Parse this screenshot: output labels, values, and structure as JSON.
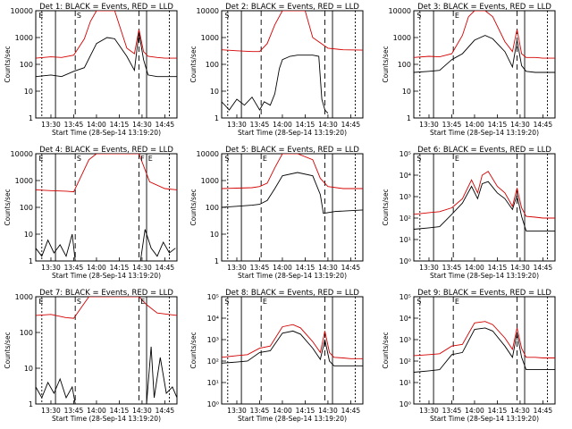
{
  "colors": {
    "events": "#000000",
    "lld": "#d40000",
    "frame": "#000000"
  },
  "common": {
    "ylabel": "Counts/sec",
    "xlabel": "Start Time (28-Sep-14 13:19:20)",
    "x_ticks": [
      "13:30",
      "13:45",
      "14:00",
      "14:15",
      "14:30",
      "14:45"
    ]
  },
  "chart_data": [
    {
      "type": "line",
      "title": "Det 1: BLACK = Events, RED = LLD",
      "y_log": true,
      "ylim": [
        1,
        10000
      ],
      "y_ticks": [
        "1",
        "10",
        "100",
        "1000",
        "10000"
      ],
      "markers": [
        "E",
        "S"
      ],
      "series": [
        {
          "name": "BLACK = Events",
          "x": [
            "13:20",
            "13:30",
            "13:37",
            "13:45",
            "13:52",
            "14:00",
            "14:07",
            "14:12",
            "14:20",
            "14:25",
            "14:28",
            "14:31",
            "14:34",
            "14:40",
            "14:45",
            "14:53"
          ],
          "y": [
            35,
            40,
            35,
            55,
            75,
            600,
            1000,
            900,
            200,
            60,
            1500,
            150,
            40,
            35,
            35,
            35
          ]
        },
        {
          "name": "RED = LLD",
          "x": [
            "13:20",
            "13:30",
            "13:37",
            "13:45",
            "13:52",
            "13:56",
            "14:00",
            "14:07",
            "14:12",
            "14:20",
            "14:25",
            "14:28",
            "14:31",
            "14:34",
            "14:40",
            "14:45",
            "14:53"
          ],
          "y": [
            170,
            190,
            180,
            220,
            900,
            4000,
            10000,
            10000,
            10000,
            400,
            250,
            2000,
            300,
            200,
            180,
            170,
            170
          ]
        }
      ]
    },
    {
      "type": "line",
      "title": "Det 2: BLACK = Events, RED = LLD",
      "y_log": true,
      "ylim": [
        1,
        10000
      ],
      "y_ticks": [
        "1",
        "10",
        "100",
        "1000",
        "10000"
      ],
      "markers": [
        "S"
      ],
      "series": [
        {
          "name": "BLACK = Events",
          "x": [
            "13:20",
            "13:25",
            "13:30",
            "13:35",
            "13:40",
            "13:45",
            "13:48",
            "13:52",
            "13:55",
            "13:58",
            "14:00",
            "14:05",
            "14:10",
            "14:15",
            "14:20",
            "14:24",
            "14:26",
            "14:28",
            "14:30"
          ],
          "y": [
            4,
            2,
            5,
            3,
            6,
            2,
            4,
            3,
            8,
            70,
            150,
            200,
            220,
            220,
            220,
            200,
            5,
            2,
            1.5
          ]
        },
        {
          "name": "RED = LLD",
          "x": [
            "13:20",
            "13:30",
            "13:40",
            "13:45",
            "13:50",
            "13:55",
            "14:00",
            "14:05",
            "14:15",
            "14:20",
            "14:30",
            "14:40",
            "14:53"
          ],
          "y": [
            350,
            320,
            300,
            300,
            600,
            3000,
            10000,
            10000,
            10000,
            1000,
            400,
            350,
            340
          ]
        }
      ]
    },
    {
      "type": "line",
      "title": "Det 3: BLACK = Events, RED = LLD",
      "y_log": true,
      "ylim": [
        1,
        10000
      ],
      "y_ticks": [
        "1",
        "10",
        "100",
        "1000",
        "10000"
      ],
      "markers": [
        "S",
        "E"
      ],
      "series": [
        {
          "name": "BLACK = Events",
          "x": [
            "13:20",
            "13:30",
            "13:37",
            "13:45",
            "13:52",
            "14:00",
            "14:07",
            "14:12",
            "14:20",
            "14:25",
            "14:28",
            "14:31",
            "14:34",
            "14:40",
            "14:45",
            "14:53"
          ],
          "y": [
            50,
            55,
            60,
            150,
            250,
            800,
            1200,
            900,
            300,
            80,
            800,
            90,
            55,
            50,
            50,
            50
          ]
        },
        {
          "name": "RED = LLD",
          "x": [
            "13:20",
            "13:30",
            "13:37",
            "13:45",
            "13:52",
            "13:56",
            "14:00",
            "14:07",
            "14:12",
            "14:20",
            "14:25",
            "14:28",
            "14:31",
            "14:34",
            "14:40",
            "14:45",
            "14:53"
          ],
          "y": [
            180,
            200,
            190,
            250,
            1200,
            6000,
            10000,
            10000,
            6000,
            700,
            300,
            2000,
            250,
            180,
            180,
            170,
            170
          ]
        }
      ]
    },
    {
      "type": "line",
      "title": "Det 4: BLACK = Events, RED = LLD",
      "y_log": true,
      "ylim": [
        1,
        10000
      ],
      "y_ticks": [
        "1",
        "10",
        "100",
        "1000",
        "10000"
      ],
      "markers": [
        "E",
        "S",
        "F",
        "E"
      ],
      "series": [
        {
          "name": "BLACK = Events",
          "x": [
            "13:20",
            "13:24",
            "13:28",
            "13:32",
            "13:36",
            "13:40",
            "13:44",
            "13:46",
            "14:29",
            "14:32",
            "14:36",
            "14:40",
            "14:44",
            "14:48",
            "14:52"
          ],
          "y": [
            3,
            1.5,
            6,
            2,
            4,
            1.5,
            10,
            1,
            1,
            15,
            3,
            1.5,
            5,
            2,
            3
          ]
        },
        {
          "name": "RED = LLD",
          "x": [
            "13:20",
            "13:30",
            "13:40",
            "13:45",
            "13:50",
            "13:55",
            "14:00",
            "14:10",
            "14:20",
            "14:28",
            "14:35",
            "14:45",
            "14:53"
          ],
          "y": [
            450,
            420,
            400,
            380,
            1500,
            6000,
            10000,
            10000,
            10000,
            10000,
            900,
            500,
            450
          ]
        }
      ]
    },
    {
      "type": "line",
      "title": "Det 5: BLACK = Events, RED = LLD",
      "y_log": true,
      "ylim": [
        1,
        10000
      ],
      "y_ticks": [
        "1",
        "10",
        "100",
        "1000",
        "10000"
      ],
      "markers": [
        "S",
        "E"
      ],
      "series": [
        {
          "name": "BLACK = Events",
          "x": [
            "13:20",
            "13:30",
            "13:40",
            "13:45",
            "13:50",
            "13:55",
            "14:00",
            "14:10",
            "14:20",
            "14:25",
            "14:27",
            "14:35",
            "14:45",
            "14:53"
          ],
          "y": [
            100,
            110,
            120,
            130,
            180,
            500,
            1500,
            2000,
            1500,
            300,
            60,
            70,
            75,
            80
          ]
        },
        {
          "name": "RED = LLD",
          "x": [
            "13:20",
            "13:30",
            "13:40",
            "13:45",
            "13:50",
            "13:55",
            "14:00",
            "14:10",
            "14:20",
            "14:25",
            "14:30",
            "14:40",
            "14:53"
          ],
          "y": [
            500,
            520,
            540,
            600,
            800,
            3000,
            10000,
            10000,
            6000,
            1200,
            600,
            500,
            500
          ]
        }
      ]
    },
    {
      "type": "line",
      "title": "Det 6: BLACK = Events, RED = LLD",
      "y_log": true,
      "ylim": [
        1,
        100000
      ],
      "y_ticks": [
        "10⁰",
        "10¹",
        "10²",
        "10³",
        "10⁴",
        "10⁵"
      ],
      "markers": [
        "S",
        "E"
      ],
      "series": [
        {
          "name": "BLACK = Events",
          "x": [
            "13:20",
            "13:30",
            "13:37",
            "13:45",
            "13:52",
            "13:58",
            "14:02",
            "14:05",
            "14:09",
            "14:15",
            "14:20",
            "14:25",
            "14:28",
            "14:31",
            "14:34",
            "14:40",
            "14:45",
            "14:53"
          ],
          "y": [
            30,
            35,
            40,
            150,
            500,
            3000,
            800,
            4000,
            5000,
            1500,
            800,
            250,
            1200,
            120,
            25,
            25,
            25,
            25
          ]
        },
        {
          "name": "RED = LLD",
          "x": [
            "13:20",
            "13:30",
            "13:37",
            "13:45",
            "13:52",
            "13:58",
            "14:02",
            "14:05",
            "14:09",
            "14:15",
            "14:20",
            "14:25",
            "14:28",
            "14:31",
            "14:34",
            "14:40",
            "14:45",
            "14:53"
          ],
          "y": [
            150,
            180,
            200,
            300,
            800,
            6000,
            1500,
            10000,
            15000,
            3000,
            1500,
            350,
            2500,
            300,
            120,
            110,
            100,
            100
          ]
        }
      ]
    },
    {
      "type": "line",
      "title": "Det 7: BLACK = Events, RED = LLD",
      "y_log": true,
      "ylim": [
        1,
        1000
      ],
      "y_ticks": [
        "1",
        "10",
        "100",
        "1000"
      ],
      "markers": [
        "E",
        "S",
        "E"
      ],
      "series": [
        {
          "name": "BLACK = Events",
          "x": [
            "13:20",
            "13:24",
            "13:28",
            "13:32",
            "13:36",
            "13:40",
            "13:44",
            "13:46",
            "14:33",
            "14:36",
            "14:38",
            "14:42",
            "14:46",
            "14:50",
            "14:53"
          ],
          "y": [
            3,
            1.5,
            4,
            2,
            5,
            1.5,
            3,
            1,
            1,
            40,
            1.5,
            20,
            2,
            3,
            1.5
          ]
        },
        {
          "name": "RED = LLD",
          "x": [
            "13:20",
            "13:30",
            "13:40",
            "13:45",
            "13:50",
            "13:55",
            "14:00",
            "14:10",
            "14:20",
            "14:28",
            "14:33",
            "14:40",
            "14:53"
          ],
          "y": [
            300,
            320,
            260,
            250,
            500,
            1000,
            1000,
            1000,
            1000,
            1000,
            600,
            350,
            300
          ]
        }
      ]
    },
    {
      "type": "line",
      "title": "Det 8: BLACK = Events, RED = LLD",
      "y_log": true,
      "ylim": [
        1,
        100000
      ],
      "y_ticks": [
        "10⁰",
        "10¹",
        "10²",
        "10³",
        "10⁴",
        "10⁵"
      ],
      "markers": [
        "S",
        "E"
      ],
      "series": [
        {
          "name": "BLACK = Events",
          "x": [
            "13:20",
            "13:30",
            "13:37",
            "13:45",
            "13:52",
            "14:00",
            "14:07",
            "14:12",
            "14:20",
            "14:25",
            "14:28",
            "14:31",
            "14:34",
            "14:40",
            "14:45",
            "14:53"
          ],
          "y": [
            80,
            90,
            100,
            250,
            300,
            2000,
            2500,
            1800,
            400,
            120,
            1000,
            100,
            60,
            60,
            60,
            60
          ]
        },
        {
          "name": "RED = LLD",
          "x": [
            "13:20",
            "13:30",
            "13:37",
            "13:45",
            "13:52",
            "14:00",
            "14:07",
            "14:12",
            "14:20",
            "14:25",
            "14:28",
            "14:31",
            "14:34",
            "14:40",
            "14:45",
            "14:53"
          ],
          "y": [
            150,
            180,
            200,
            400,
            500,
            4000,
            5000,
            3500,
            800,
            250,
            2500,
            250,
            150,
            140,
            130,
            130
          ]
        }
      ]
    },
    {
      "type": "line",
      "title": "Det 9: BLACK = Events, RED = LLD",
      "y_log": true,
      "ylim": [
        1,
        100000
      ],
      "y_ticks": [
        "10⁰",
        "10¹",
        "10²",
        "10³",
        "10⁴",
        "10⁵"
      ],
      "markers": [
        "S",
        "E"
      ],
      "series": [
        {
          "name": "BLACK = Events",
          "x": [
            "13:20",
            "13:30",
            "13:37",
            "13:45",
            "13:52",
            "14:00",
            "14:07",
            "14:12",
            "14:20",
            "14:25",
            "14:28",
            "14:31",
            "14:34",
            "14:40",
            "14:45",
            "14:53"
          ],
          "y": [
            30,
            35,
            40,
            200,
            250,
            3000,
            3500,
            2500,
            500,
            150,
            2000,
            150,
            40,
            40,
            40,
            40
          ]
        },
        {
          "name": "RED = LLD",
          "x": [
            "13:20",
            "13:30",
            "13:37",
            "13:45",
            "13:52",
            "14:00",
            "14:07",
            "14:12",
            "14:20",
            "14:25",
            "14:28",
            "14:31",
            "14:34",
            "14:40",
            "14:45",
            "14:53"
          ],
          "y": [
            180,
            200,
            220,
            500,
            600,
            6000,
            7000,
            5000,
            1200,
            350,
            3500,
            400,
            150,
            150,
            140,
            140
          ]
        }
      ]
    }
  ]
}
